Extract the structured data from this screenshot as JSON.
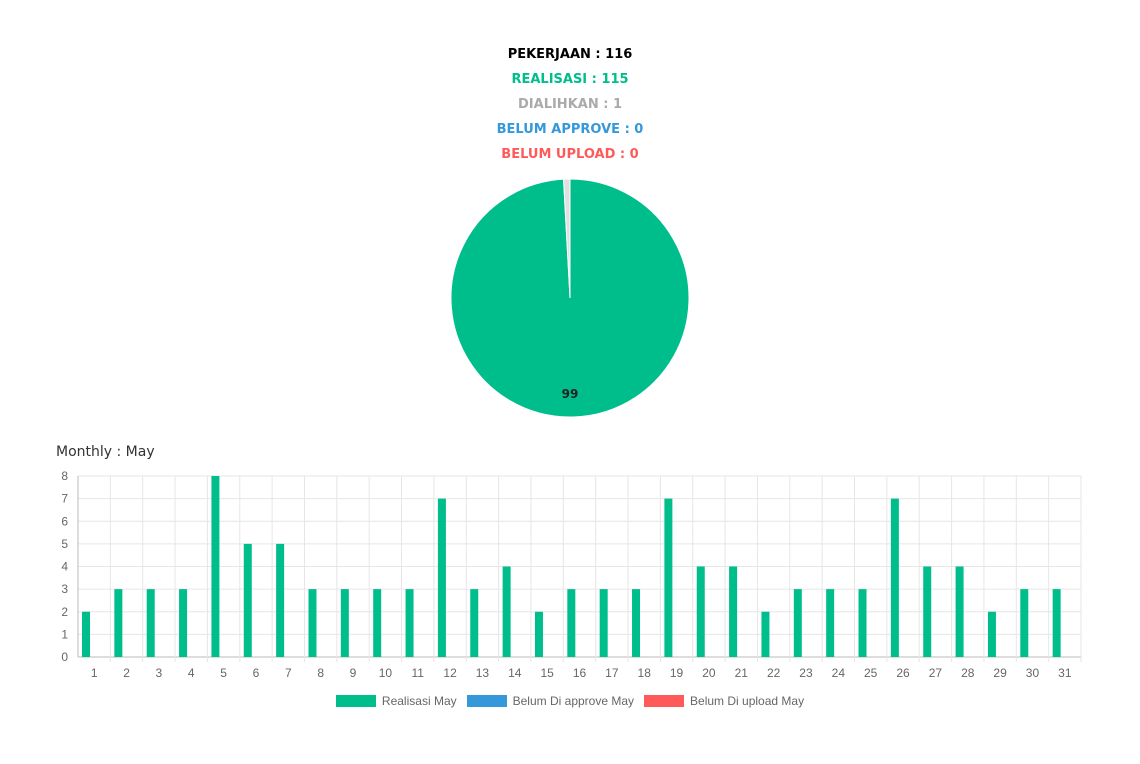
{
  "summary": {
    "pekerjaan": "PEKERJAAN : 116",
    "realisasi": "REALISASI : 115",
    "dialihkan": "DIALIHKAN : 1",
    "belum_approve": "BELUM APPROVE : 0",
    "belum_upload": "BELUM UPLOAD : 0"
  },
  "colors": {
    "realisasi": "#00be8b",
    "dialihkan": "#aaaaaa",
    "belum_approve": "#3498db",
    "belum_upload": "#ff5a5a",
    "pekerjaan": "#000000"
  },
  "monthly": {
    "title": "Monthly : May"
  },
  "chart_data": [
    {
      "type": "pie",
      "slices": [
        {
          "name": "Realisasi",
          "value": 115,
          "color": "#00be8b"
        },
        {
          "name": "Dialihkan",
          "value": 1,
          "color": "#e0e0e0"
        }
      ],
      "slice_label": "99"
    },
    {
      "type": "bar",
      "categories": [
        "1",
        "2",
        "3",
        "4",
        "5",
        "6",
        "7",
        "8",
        "9",
        "10",
        "11",
        "12",
        "13",
        "14",
        "15",
        "16",
        "17",
        "18",
        "19",
        "20",
        "21",
        "22",
        "23",
        "24",
        "25",
        "26",
        "27",
        "28",
        "29",
        "30",
        "31"
      ],
      "series": [
        {
          "name": "Realisasi May",
          "color": "#00be8b",
          "values": [
            2,
            3,
            3,
            3,
            8,
            5,
            5,
            3,
            3,
            3,
            3,
            7,
            3,
            4,
            2,
            3,
            3,
            3,
            7,
            4,
            4,
            2,
            3,
            3,
            3,
            7,
            4,
            4,
            2,
            3,
            3
          ]
        },
        {
          "name": "Belum Di approve May",
          "color": "#3498db",
          "values": [
            0,
            0,
            0,
            0,
            0,
            0,
            0,
            0,
            0,
            0,
            0,
            0,
            0,
            0,
            0,
            0,
            0,
            0,
            0,
            0,
            0,
            0,
            0,
            0,
            0,
            0,
            0,
            0,
            0,
            0,
            0
          ]
        },
        {
          "name": "Belum Di upload May",
          "color": "#ff5a5a",
          "values": [
            0,
            0,
            0,
            0,
            0,
            0,
            0,
            0,
            0,
            0,
            0,
            0,
            0,
            0,
            0,
            0,
            0,
            0,
            0,
            0,
            0,
            0,
            0,
            0,
            0,
            0,
            0,
            0,
            0,
            0,
            0
          ]
        }
      ],
      "ylim": [
        0,
        8
      ],
      "yticks": [
        "0",
        "1",
        "2",
        "3",
        "4",
        "5",
        "6",
        "7",
        "8"
      ],
      "grid": true,
      "legend": "bottom"
    }
  ]
}
